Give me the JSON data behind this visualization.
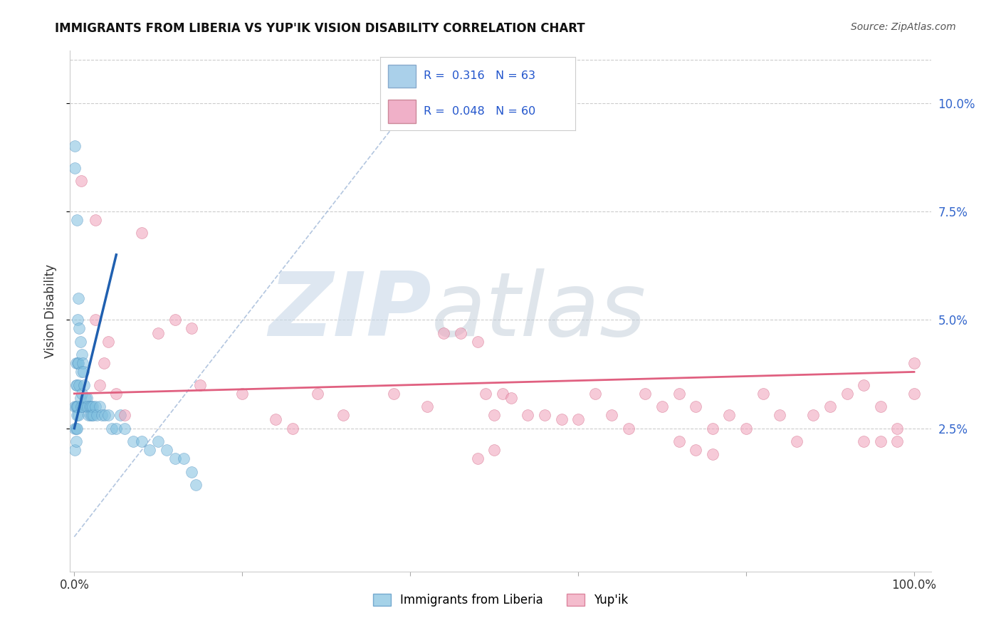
{
  "title": "IMMIGRANTS FROM LIBERIA VS YUP'IK VISION DISABILITY CORRELATION CHART",
  "source": "Source: ZipAtlas.com",
  "ylabel": "Vision Disability",
  "ytick_vals": [
    0.025,
    0.05,
    0.075,
    0.1
  ],
  "ytick_labels": [
    "2.5%",
    "5.0%",
    "7.5%",
    "10.0%"
  ],
  "xlim": [
    -0.005,
    1.02
  ],
  "ylim": [
    -0.008,
    0.112
  ],
  "blue_color": "#7fbfdf",
  "pink_color": "#f0a0b8",
  "blue_line_color": "#2060b0",
  "pink_line_color": "#e06080",
  "dashed_line_color": "#a0b8d8",
  "blue_line_x": [
    0.0,
    0.05
  ],
  "blue_line_y": [
    0.025,
    0.065
  ],
  "pink_line_x": [
    0.0,
    1.0
  ],
  "pink_line_y": [
    0.033,
    0.038
  ],
  "dash_line_x": [
    0.0,
    0.43
  ],
  "dash_line_y": [
    0.0,
    0.107
  ],
  "blue_x": [
    0.001,
    0.001,
    0.001,
    0.001,
    0.001,
    0.002,
    0.002,
    0.002,
    0.002,
    0.002,
    0.003,
    0.003,
    0.003,
    0.003,
    0.004,
    0.004,
    0.004,
    0.005,
    0.005,
    0.005,
    0.006,
    0.006,
    0.007,
    0.007,
    0.008,
    0.008,
    0.009,
    0.009,
    0.01,
    0.01,
    0.011,
    0.012,
    0.013,
    0.014,
    0.015,
    0.016,
    0.017,
    0.018,
    0.019,
    0.02,
    0.021,
    0.022,
    0.023,
    0.025,
    0.027,
    0.03,
    0.033,
    0.036,
    0.04,
    0.045,
    0.05,
    0.055,
    0.06,
    0.07,
    0.08,
    0.09,
    0.1,
    0.11,
    0.12,
    0.13,
    0.14,
    0.145,
    0.003
  ],
  "blue_y": [
    0.09,
    0.085,
    0.03,
    0.025,
    0.02,
    0.04,
    0.035,
    0.03,
    0.025,
    0.022,
    0.035,
    0.03,
    0.028,
    0.025,
    0.05,
    0.04,
    0.03,
    0.055,
    0.04,
    0.028,
    0.048,
    0.035,
    0.045,
    0.032,
    0.038,
    0.03,
    0.042,
    0.033,
    0.04,
    0.03,
    0.038,
    0.035,
    0.032,
    0.03,
    0.032,
    0.03,
    0.028,
    0.03,
    0.028,
    0.03,
    0.028,
    0.03,
    0.028,
    0.03,
    0.028,
    0.03,
    0.028,
    0.028,
    0.028,
    0.025,
    0.025,
    0.028,
    0.025,
    0.022,
    0.022,
    0.02,
    0.022,
    0.02,
    0.018,
    0.018,
    0.015,
    0.012,
    0.073
  ],
  "pink_x": [
    0.008,
    0.025,
    0.025,
    0.03,
    0.035,
    0.04,
    0.05,
    0.06,
    0.08,
    0.1,
    0.12,
    0.14,
    0.15,
    0.2,
    0.24,
    0.26,
    0.29,
    0.32,
    0.38,
    0.42,
    0.44,
    0.46,
    0.48,
    0.49,
    0.5,
    0.51,
    0.52,
    0.54,
    0.56,
    0.58,
    0.6,
    0.62,
    0.64,
    0.66,
    0.68,
    0.7,
    0.72,
    0.74,
    0.76,
    0.78,
    0.8,
    0.82,
    0.84,
    0.86,
    0.88,
    0.9,
    0.92,
    0.94,
    0.96,
    0.98,
    1.0,
    0.72,
    0.74,
    0.76,
    0.94,
    0.96,
    0.98,
    1.0,
    0.48,
    0.5
  ],
  "pink_y": [
    0.082,
    0.073,
    0.05,
    0.035,
    0.04,
    0.045,
    0.033,
    0.028,
    0.07,
    0.047,
    0.05,
    0.048,
    0.035,
    0.033,
    0.027,
    0.025,
    0.033,
    0.028,
    0.033,
    0.03,
    0.047,
    0.047,
    0.045,
    0.033,
    0.028,
    0.033,
    0.032,
    0.028,
    0.028,
    0.027,
    0.027,
    0.033,
    0.028,
    0.025,
    0.033,
    0.03,
    0.033,
    0.03,
    0.025,
    0.028,
    0.025,
    0.033,
    0.028,
    0.022,
    0.028,
    0.03,
    0.033,
    0.035,
    0.03,
    0.025,
    0.033,
    0.022,
    0.02,
    0.019,
    0.022,
    0.022,
    0.022,
    0.04,
    0.018,
    0.02
  ]
}
